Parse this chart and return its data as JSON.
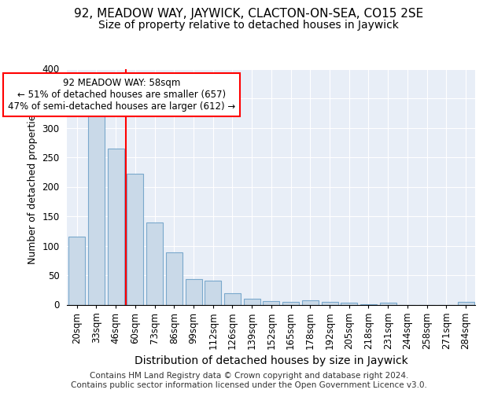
{
  "title1": "92, MEADOW WAY, JAYWICK, CLACTON-ON-SEA, CO15 2SE",
  "title2": "Size of property relative to detached houses in Jaywick",
  "xlabel": "Distribution of detached houses by size in Jaywick",
  "ylabel": "Number of detached properties",
  "categories": [
    "20sqm",
    "33sqm",
    "46sqm",
    "60sqm",
    "73sqm",
    "86sqm",
    "99sqm",
    "112sqm",
    "126sqm",
    "139sqm",
    "152sqm",
    "165sqm",
    "178sqm",
    "192sqm",
    "205sqm",
    "218sqm",
    "231sqm",
    "244sqm",
    "258sqm",
    "271sqm",
    "284sqm"
  ],
  "values": [
    115,
    330,
    265,
    222,
    140,
    89,
    44,
    41,
    19,
    10,
    6,
    5,
    8,
    5,
    3,
    1,
    4,
    0,
    0,
    0,
    5
  ],
  "bar_color": "#c9d9e8",
  "bar_edge_color": "#7aa8cc",
  "annotation_text": "92 MEADOW WAY: 58sqm\n← 51% of detached houses are smaller (657)\n47% of semi-detached houses are larger (612) →",
  "annotation_box_color": "white",
  "annotation_box_edge_color": "red",
  "vline_color": "red",
  "vline_x": 2.5,
  "ylim": [
    0,
    400
  ],
  "yticks": [
    0,
    50,
    100,
    150,
    200,
    250,
    300,
    350,
    400
  ],
  "background_color": "#e8eef7",
  "footer_text": "Contains HM Land Registry data © Crown copyright and database right 2024.\nContains public sector information licensed under the Open Government Licence v3.0.",
  "title1_fontsize": 11,
  "title2_fontsize": 10,
  "xlabel_fontsize": 10,
  "ylabel_fontsize": 9,
  "tick_fontsize": 8.5,
  "footer_fontsize": 7.5,
  "ann_fontsize": 8.5
}
